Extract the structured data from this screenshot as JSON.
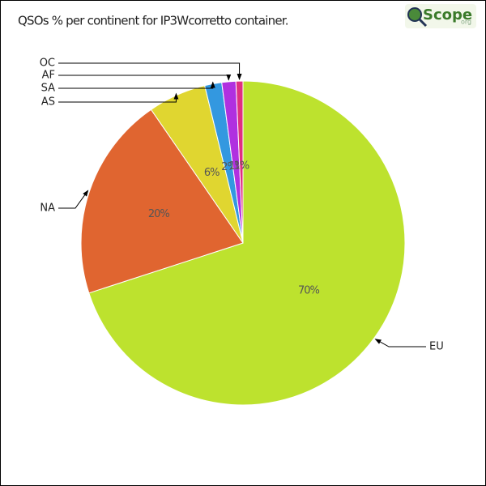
{
  "chart_data": {
    "type": "pie",
    "title": "QSOs % per continent for IP3Wcorretto container.",
    "logo": {
      "text": "Scope",
      "suffix": "org"
    },
    "categories": [
      "EU",
      "NA",
      "AS",
      "SA",
      "AF",
      "OC"
    ],
    "values": [
      70,
      20.4,
      5.8,
      1.7,
      1.4,
      0.7
    ],
    "value_labels": [
      "70%",
      "20%",
      "6%",
      "2%",
      "1%",
      "1%"
    ],
    "colors": [
      "#bde22e",
      "#e06530",
      "#e0d630",
      "#3398e0",
      "#b030e0",
      "#e03080"
    ]
  }
}
